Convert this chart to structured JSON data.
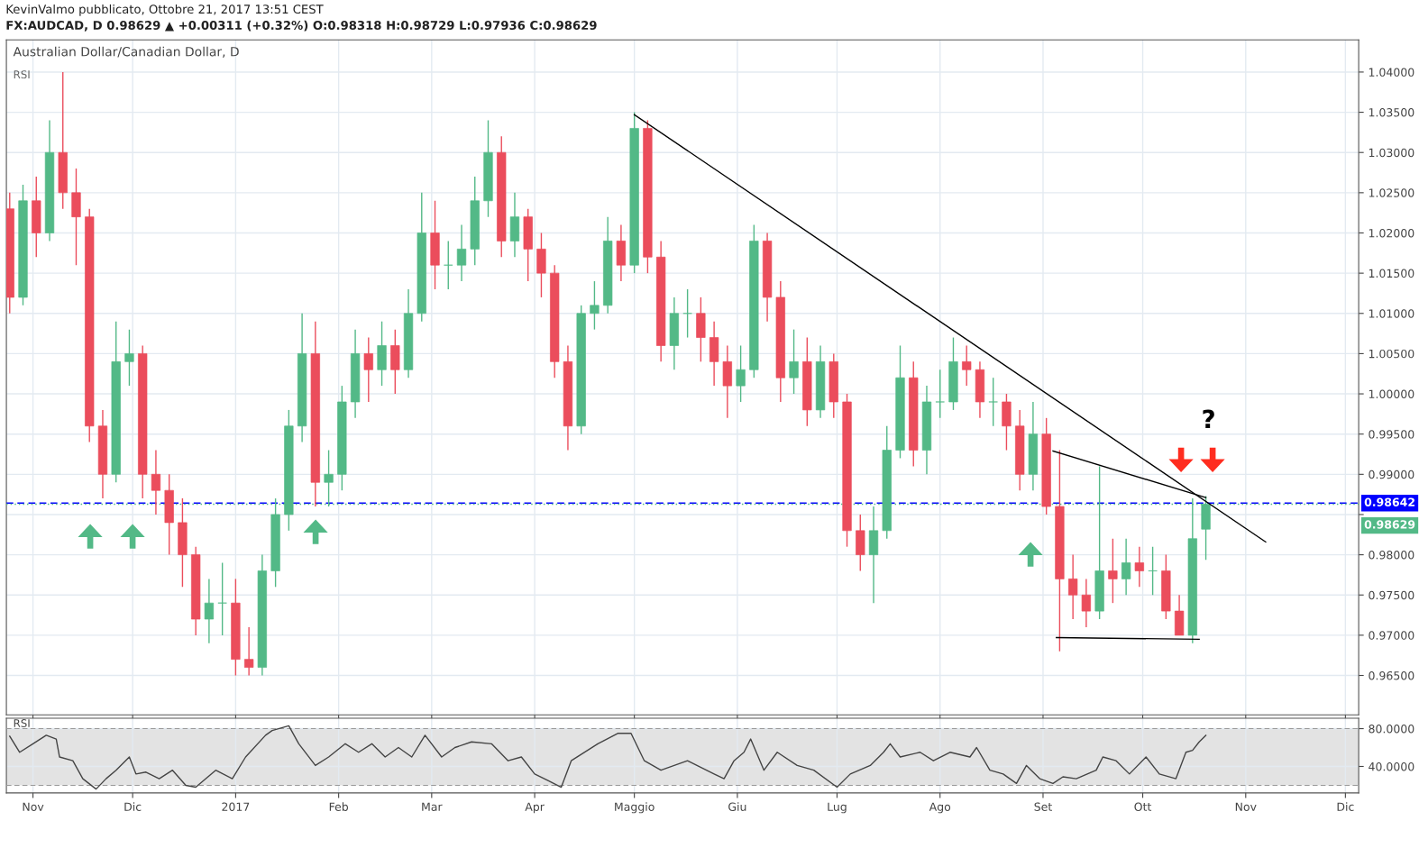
{
  "chart_data": [
    {
      "type": "candlestick",
      "title": "Australian Dollar/Canadian Dollar, D",
      "subtitle": "RSI",
      "annotations": [
        "KevinValmo pubblicato, Ottobre 21, 2017 13:51 CEST",
        "FX:AUDCAD, D 0.98629 ▲ +0.00311 (+0.32%) O:0.98318 H:0.98729 L:0.97936 C:0.98629",
        "?"
      ],
      "x": [
        "2016-10-25",
        "2016-10-29",
        "2016-11-02",
        "2016-11-06",
        "2016-11-10",
        "2016-11-14",
        "2016-11-18",
        "2016-11-22",
        "2016-11-26",
        "2016-11-30",
        "2016-12-04",
        "2016-12-08",
        "2016-12-12",
        "2016-12-16",
        "2016-12-20",
        "2016-12-24",
        "2016-12-28",
        "2017-01-01",
        "2017-01-05",
        "2017-01-09",
        "2017-01-13",
        "2017-01-17",
        "2017-01-21",
        "2017-01-25",
        "2017-01-29",
        "2017-02-02",
        "2017-02-06",
        "2017-02-10",
        "2017-02-14",
        "2017-02-18",
        "2017-02-22",
        "2017-02-26",
        "2017-03-02",
        "2017-03-06",
        "2017-03-10",
        "2017-03-14",
        "2017-03-18",
        "2017-03-22",
        "2017-03-26",
        "2017-03-30",
        "2017-04-03",
        "2017-04-07",
        "2017-04-11",
        "2017-04-15",
        "2017-04-19",
        "2017-04-23",
        "2017-04-27",
        "2017-05-01",
        "2017-05-05",
        "2017-05-09",
        "2017-05-13",
        "2017-05-17",
        "2017-05-21",
        "2017-05-25",
        "2017-05-29",
        "2017-06-02",
        "2017-06-06",
        "2017-06-10",
        "2017-06-14",
        "2017-06-18",
        "2017-06-22",
        "2017-06-26",
        "2017-06-30",
        "2017-07-04",
        "2017-07-08",
        "2017-07-12",
        "2017-07-16",
        "2017-07-20",
        "2017-07-24",
        "2017-07-28",
        "2017-08-01",
        "2017-08-05",
        "2017-08-09",
        "2017-08-13",
        "2017-08-17",
        "2017-08-21",
        "2017-08-25",
        "2017-08-29",
        "2017-09-02",
        "2017-09-06",
        "2017-09-10",
        "2017-09-14",
        "2017-09-18",
        "2017-09-22",
        "2017-09-26",
        "2017-09-30",
        "2017-10-04",
        "2017-10-08",
        "2017-10-12",
        "2017-10-16",
        "2017-10-20"
      ],
      "ohlc": [
        [
          1.023,
          1.025,
          1.01,
          1.012
        ],
        [
          1.012,
          1.026,
          1.011,
          1.024
        ],
        [
          1.024,
          1.027,
          1.017,
          1.02
        ],
        [
          1.02,
          1.034,
          1.019,
          1.03
        ],
        [
          1.03,
          1.04,
          1.023,
          1.025
        ],
        [
          1.025,
          1.028,
          1.016,
          1.022
        ],
        [
          1.022,
          1.023,
          0.994,
          0.996
        ],
        [
          0.996,
          0.998,
          0.987,
          0.99
        ],
        [
          0.99,
          1.009,
          0.989,
          1.004
        ],
        [
          1.004,
          1.008,
          1.001,
          1.005
        ],
        [
          1.005,
          1.006,
          0.987,
          0.99
        ],
        [
          0.99,
          0.993,
          0.985,
          0.988
        ],
        [
          0.988,
          0.99,
          0.98,
          0.984
        ],
        [
          0.984,
          0.987,
          0.976,
          0.98
        ],
        [
          0.98,
          0.981,
          0.97,
          0.972
        ],
        [
          0.972,
          0.977,
          0.969,
          0.974
        ],
        [
          0.974,
          0.979,
          0.97,
          0.974
        ],
        [
          0.974,
          0.977,
          0.965,
          0.967
        ],
        [
          0.967,
          0.971,
          0.965,
          0.966
        ],
        [
          0.966,
          0.98,
          0.965,
          0.978
        ],
        [
          0.978,
          0.987,
          0.976,
          0.985
        ],
        [
          0.985,
          0.998,
          0.983,
          0.996
        ],
        [
          0.996,
          1.01,
          0.994,
          1.005
        ],
        [
          1.005,
          1.009,
          0.986,
          0.989
        ],
        [
          0.989,
          0.993,
          0.986,
          0.99
        ],
        [
          0.99,
          1.001,
          0.988,
          0.999
        ],
        [
          0.999,
          1.008,
          0.997,
          1.005
        ],
        [
          1.005,
          1.007,
          0.999,
          1.003
        ],
        [
          1.003,
          1.009,
          1.001,
          1.006
        ],
        [
          1.006,
          1.008,
          1.0,
          1.003
        ],
        [
          1.003,
          1.013,
          1.002,
          1.01
        ],
        [
          1.01,
          1.025,
          1.009,
          1.02
        ],
        [
          1.02,
          1.024,
          1.013,
          1.016
        ],
        [
          1.016,
          1.019,
          1.013,
          1.016
        ],
        [
          1.016,
          1.021,
          1.014,
          1.018
        ],
        [
          1.018,
          1.027,
          1.016,
          1.024
        ],
        [
          1.024,
          1.034,
          1.022,
          1.03
        ],
        [
          1.03,
          1.032,
          1.017,
          1.019
        ],
        [
          1.019,
          1.025,
          1.017,
          1.022
        ],
        [
          1.022,
          1.023,
          1.014,
          1.018
        ],
        [
          1.018,
          1.02,
          1.012,
          1.015
        ],
        [
          1.015,
          1.016,
          1.002,
          1.004
        ],
        [
          1.004,
          1.006,
          0.993,
          0.996
        ],
        [
          0.996,
          1.011,
          0.995,
          1.01
        ],
        [
          1.01,
          1.014,
          1.008,
          1.011
        ],
        [
          1.011,
          1.022,
          1.01,
          1.019
        ],
        [
          1.019,
          1.021,
          1.014,
          1.016
        ],
        [
          1.016,
          1.035,
          1.015,
          1.033
        ],
        [
          1.033,
          1.034,
          1.015,
          1.017
        ],
        [
          1.017,
          1.019,
          1.004,
          1.006
        ],
        [
          1.006,
          1.012,
          1.003,
          1.01
        ],
        [
          1.01,
          1.013,
          1.007,
          1.01
        ],
        [
          1.01,
          1.012,
          1.004,
          1.007
        ],
        [
          1.007,
          1.009,
          1.001,
          1.004
        ],
        [
          1.004,
          1.006,
          0.997,
          1.001
        ],
        [
          1.001,
          1.006,
          0.999,
          1.003
        ],
        [
          1.003,
          1.021,
          1.002,
          1.019
        ],
        [
          1.019,
          1.02,
          1.009,
          1.012
        ],
        [
          1.012,
          1.014,
          0.999,
          1.002
        ],
        [
          1.002,
          1.008,
          1.0,
          1.004
        ],
        [
          1.004,
          1.007,
          0.996,
          0.998
        ],
        [
          0.998,
          1.006,
          0.997,
          1.004
        ],
        [
          1.004,
          1.005,
          0.997,
          0.999
        ],
        [
          0.999,
          1.0,
          0.981,
          0.983
        ],
        [
          0.983,
          0.985,
          0.978,
          0.98
        ],
        [
          0.98,
          0.986,
          0.974,
          0.983
        ],
        [
          0.983,
          0.996,
          0.982,
          0.993
        ],
        [
          0.993,
          1.006,
          0.992,
          1.002
        ],
        [
          1.002,
          1.004,
          0.991,
          0.993
        ],
        [
          0.993,
          1.001,
          0.99,
          0.999
        ],
        [
          0.999,
          1.003,
          0.997,
          0.999
        ],
        [
          0.999,
          1.007,
          0.998,
          1.004
        ],
        [
          1.004,
          1.006,
          1.001,
          1.003
        ],
        [
          1.003,
          1.004,
          0.997,
          0.999
        ],
        [
          0.999,
          1.002,
          0.996,
          0.999
        ],
        [
          0.999,
          1.0,
          0.993,
          0.996
        ],
        [
          0.996,
          0.998,
          0.988,
          0.99
        ],
        [
          0.99,
          0.999,
          0.988,
          0.995
        ],
        [
          0.995,
          0.997,
          0.985,
          0.986
        ],
        [
          0.986,
          0.993,
          0.968,
          0.977
        ],
        [
          0.977,
          0.98,
          0.972,
          0.975
        ],
        [
          0.975,
          0.977,
          0.971,
          0.973
        ],
        [
          0.973,
          0.991,
          0.972,
          0.978
        ],
        [
          0.978,
          0.982,
          0.974,
          0.977
        ],
        [
          0.977,
          0.982,
          0.975,
          0.979
        ],
        [
          0.979,
          0.981,
          0.976,
          0.978
        ],
        [
          0.978,
          0.981,
          0.975,
          0.978
        ],
        [
          0.978,
          0.98,
          0.972,
          0.973
        ],
        [
          0.973,
          0.975,
          0.97,
          0.97
        ],
        [
          0.97,
          0.987,
          0.969,
          0.982
        ],
        [
          0.98318,
          0.98729,
          0.97936,
          0.98629
        ]
      ],
      "colors": [
        "#eb4d5c",
        "#53b987",
        "#eb4d5c",
        "#53b987",
        "#eb4d5c",
        "#eb4d5c",
        "#eb4d5c",
        "#eb4d5c",
        "#53b987",
        "#53b987",
        "#eb4d5c",
        "#eb4d5c",
        "#eb4d5c",
        "#eb4d5c",
        "#eb4d5c",
        "#53b987",
        "#53b987",
        "#eb4d5c",
        "#eb4d5c",
        "#53b987",
        "#53b987",
        "#53b987",
        "#53b987",
        "#eb4d5c",
        "#53b987",
        "#53b987",
        "#53b987",
        "#eb4d5c",
        "#53b987",
        "#eb4d5c",
        "#53b987",
        "#53b987",
        "#eb4d5c",
        "#53b987",
        "#53b987",
        "#53b987",
        "#53b987",
        "#eb4d5c",
        "#53b987",
        "#eb4d5c",
        "#eb4d5c",
        "#eb4d5c",
        "#eb4d5c",
        "#53b987",
        "#53b987",
        "#53b987",
        "#eb4d5c",
        "#53b987",
        "#eb4d5c",
        "#eb4d5c",
        "#53b987",
        "#53b987",
        "#eb4d5c",
        "#eb4d5c",
        "#eb4d5c",
        "#53b987",
        "#53b987",
        "#eb4d5c",
        "#eb4d5c",
        "#53b987",
        "#eb4d5c",
        "#53b987",
        "#eb4d5c",
        "#eb4d5c",
        "#eb4d5c",
        "#53b987",
        "#53b987",
        "#53b987",
        "#eb4d5c",
        "#53b987",
        "#53b987",
        "#53b987",
        "#eb4d5c",
        "#eb4d5c",
        "#53b987",
        "#eb4d5c",
        "#eb4d5c",
        "#53b987",
        "#eb4d5c",
        "#eb4d5c",
        "#eb4d5c",
        "#eb4d5c",
        "#53b987",
        "#eb4d5c",
        "#53b987",
        "#eb4d5c",
        "#53b987",
        "#eb4d5c",
        "#eb4d5c",
        "#53b987",
        "#53b987"
      ],
      "series": [
        {
          "type": "line",
          "color": "#000000",
          "x": [
            "2017-05-01",
            "2017-11-07"
          ],
          "values": [
            1.0347,
            0.9816
          ]
        },
        {
          "type": "line",
          "color": "#000000",
          "x": [
            "2017-09-04",
            "2017-10-20"
          ],
          "values": [
            0.9929,
            0.9871
          ]
        },
        {
          "type": "line",
          "color": "#000000",
          "x": [
            "2017-09-05",
            "2017-10-18"
          ],
          "values": [
            0.9697,
            0.9695
          ]
        }
      ],
      "ref_lines": [
        {
          "axis": "y",
          "value": 0.98642,
          "label": "0.98642",
          "color": "#0000ff",
          "line_style": "dashed"
        },
        {
          "axis": "y",
          "value": 0.98629,
          "label": "0.98629",
          "color": "#53b987",
          "line_style": "dotted"
        }
      ],
      "xlim": [
        "2016-10-24",
        "2017-12-05"
      ],
      "xticks": [
        {
          "value": "2016-11-01",
          "label": null
        },
        {
          "value": "2016-12-01",
          "label": null
        },
        {
          "value": "2017-01-01",
          "label": null
        },
        {
          "value": "2017-02-01",
          "label": null
        },
        {
          "value": "2017-03-01",
          "label": null
        },
        {
          "value": "2017-04-01",
          "label": null
        },
        {
          "value": "2017-05-01",
          "label": null
        },
        {
          "value": "2017-06-01",
          "label": null
        },
        {
          "value": "2017-07-01",
          "label": null
        },
        {
          "value": "2017-08-01",
          "label": null
        },
        {
          "value": "2017-09-01",
          "label": null
        },
        {
          "value": "2017-10-01",
          "label": null
        },
        {
          "value": "2017-11-01",
          "label": null
        },
        {
          "value": "2017-12-01",
          "label": null
        }
      ],
      "ylim": [
        0.9601,
        1.044
      ],
      "yticks": [
        {
          "value": 0.965,
          "label": "0.96500"
        },
        {
          "value": 0.97,
          "label": "0.97000"
        },
        {
          "value": 0.975,
          "label": "0.97500"
        },
        {
          "value": 0.98,
          "label": "0.98000"
        },
        {
          "value": 0.985,
          "label": null
        },
        {
          "value": 0.99,
          "label": "0.99000"
        },
        {
          "value": 0.995,
          "label": "0.99500"
        },
        {
          "value": 1.0,
          "label": "1.00000"
        },
        {
          "value": 1.005,
          "label": "1.00500"
        },
        {
          "value": 1.01,
          "label": "1.01000"
        },
        {
          "value": 1.015,
          "label": "1.01500"
        },
        {
          "value": 1.02,
          "label": "1.02000"
        },
        {
          "value": 1.025,
          "label": "1.02500"
        },
        {
          "value": 1.03,
          "label": "1.03000"
        },
        {
          "value": 1.035,
          "label": "1.03500"
        },
        {
          "value": 1.04,
          "label": "1.04000"
        }
      ],
      "tick_labels": "y",
      "grid": true
    },
    {
      "type": "line",
      "title": "RSI",
      "x": [
        "2016-10-25",
        "2016-10-28",
        "2016-11-01",
        "2016-11-05",
        "2016-11-08",
        "2016-11-09",
        "2016-11-13",
        "2016-11-16",
        "2016-11-20",
        "2016-11-23",
        "2016-11-26",
        "2016-11-30",
        "2016-12-02",
        "2016-12-05",
        "2016-12-09",
        "2016-12-13",
        "2016-12-17",
        "2016-12-20",
        "2016-12-26",
        "2016-12-31",
        "2017-01-04",
        "2017-01-10",
        "2017-01-12",
        "2017-01-17",
        "2017-01-20",
        "2017-01-25",
        "2017-01-29",
        "2017-02-03",
        "2017-02-07",
        "2017-02-11",
        "2017-02-15",
        "2017-02-19",
        "2017-02-23",
        "2017-02-27",
        "2017-03-04",
        "2017-03-08",
        "2017-03-13",
        "2017-03-19",
        "2017-03-24",
        "2017-03-28",
        "2017-04-01",
        "2017-04-05",
        "2017-04-09",
        "2017-04-12",
        "2017-04-20",
        "2017-04-26",
        "2017-04-30",
        "2017-05-04",
        "2017-05-09",
        "2017-05-17",
        "2017-05-25",
        "2017-05-28",
        "2017-05-31",
        "2017-06-03",
        "2017-06-05",
        "2017-06-09",
        "2017-06-13",
        "2017-06-19",
        "2017-06-24",
        "2017-07-01",
        "2017-07-05",
        "2017-07-11",
        "2017-07-15",
        "2017-07-17",
        "2017-07-20",
        "2017-07-26",
        "2017-07-30",
        "2017-08-04",
        "2017-08-10",
        "2017-08-12",
        "2017-08-16",
        "2017-08-20",
        "2017-08-24",
        "2017-08-27",
        "2017-08-31",
        "2017-09-04",
        "2017-09-07",
        "2017-09-11",
        "2017-09-17",
        "2017-09-19",
        "2017-09-23",
        "2017-09-27",
        "2017-10-02",
        "2017-10-06",
        "2017-10-11",
        "2017-10-14",
        "2017-10-16",
        "2017-10-18",
        "2017-10-20"
      ],
      "series": [
        {
          "color": "#444444",
          "values": [
            72,
            55,
            64,
            73,
            69,
            50,
            46,
            27,
            16,
            27,
            36,
            50,
            32,
            34,
            27,
            36,
            20,
            18,
            36,
            27,
            50,
            73,
            78,
            83,
            64,
            41,
            50,
            64,
            55,
            64,
            50,
            60,
            50,
            73,
            50,
            60,
            66,
            64,
            46,
            50,
            32,
            25,
            18,
            46,
            64,
            75,
            75,
            46,
            36,
            46,
            32,
            27,
            46,
            55,
            69,
            36,
            55,
            41,
            36,
            18,
            32,
            41,
            55,
            64,
            50,
            55,
            46,
            55,
            50,
            60,
            36,
            32,
            22,
            41,
            27,
            22,
            29,
            27,
            36,
            50,
            46,
            32,
            50,
            32,
            27,
            55,
            57,
            66,
            73
          ]
        }
      ],
      "bands": [
        {
          "axis": "y",
          "from": 20,
          "to": 80,
          "color": "#e3e3e3"
        }
      ],
      "ref_lines": [
        {
          "axis": "y",
          "value": 20,
          "color": "#9a9a9a",
          "line_style": "dashed"
        },
        {
          "axis": "y",
          "value": 80,
          "color": "#9a9a9a",
          "line_style": "dashed"
        }
      ],
      "xlim": [
        "2016-10-24",
        "2017-12-05"
      ],
      "xticks": [
        {
          "value": "2016-11-01",
          "label": "Nov"
        },
        {
          "value": "2016-12-01",
          "label": "Dic"
        },
        {
          "value": "2017-01-01",
          "label": "2017"
        },
        {
          "value": "2017-02-01",
          "label": "Feb"
        },
        {
          "value": "2017-03-01",
          "label": "Mar"
        },
        {
          "value": "2017-04-01",
          "label": "Apr"
        },
        {
          "value": "2017-05-01",
          "label": "Maggio"
        },
        {
          "value": "2017-06-01",
          "label": "Giu"
        },
        {
          "value": "2017-07-01",
          "label": "Lug"
        },
        {
          "value": "2017-08-01",
          "label": "Ago"
        },
        {
          "value": "2017-09-01",
          "label": "Set"
        },
        {
          "value": "2017-10-01",
          "label": "Ott"
        },
        {
          "value": "2017-11-01",
          "label": "Nov"
        },
        {
          "value": "2017-12-01",
          "label": "Dic"
        }
      ],
      "ylim": [
        12,
        91
      ],
      "yticks": [
        {
          "value": 40,
          "label": "40.0000"
        },
        {
          "value": 80,
          "label": "80.0000"
        }
      ],
      "grid": true
    }
  ]
}
